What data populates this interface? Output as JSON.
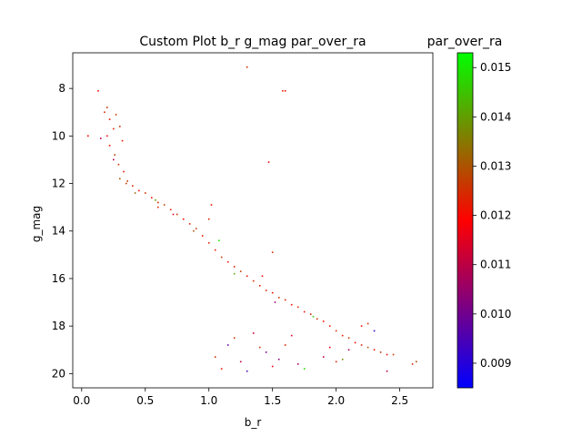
{
  "chart_data": {
    "type": "scatter",
    "title": "Custom Plot b_r g_mag par_over_ra",
    "xlabel": "b_r",
    "ylabel": "g_mag",
    "xlim": [
      -0.07,
      2.76
    ],
    "ylim": [
      20.6,
      6.5
    ],
    "y_inverted": true,
    "x_ticks": [
      "0.0",
      "0.5",
      "1.0",
      "1.5",
      "2.0",
      "2.5"
    ],
    "y_ticks": [
      "8",
      "10",
      "12",
      "14",
      "16",
      "18",
      "20"
    ],
    "grid": false,
    "legend": "none",
    "colorbar": {
      "label": "par_over_ra",
      "range": [
        0.0085,
        0.0153
      ],
      "ticks": [
        "0.009",
        "0.010",
        "0.011",
        "0.012",
        "0.013",
        "0.014",
        "0.015"
      ],
      "colors": [
        "#0000ff",
        "#ff0000",
        "#00ff00"
      ]
    },
    "series": [
      {
        "points": [
          [
            0.13,
            8.1,
            0.0121
          ],
          [
            0.05,
            10.0,
            0.0119
          ],
          [
            1.3,
            7.1,
            0.0124
          ],
          [
            1.58,
            8.1,
            0.0122
          ],
          [
            1.6,
            8.1,
            0.0121
          ],
          [
            1.47,
            11.1,
            0.0118
          ],
          [
            0.18,
            9.0,
            0.0125
          ],
          [
            0.2,
            8.8,
            0.0127
          ],
          [
            0.22,
            9.3,
            0.0122
          ],
          [
            0.25,
            9.7,
            0.0124
          ],
          [
            0.2,
            10.0,
            0.012
          ],
          [
            0.27,
            9.1,
            0.0126
          ],
          [
            0.3,
            9.6,
            0.0125
          ],
          [
            0.32,
            10.2,
            0.0123
          ],
          [
            0.22,
            10.4,
            0.0121
          ],
          [
            0.26,
            10.8,
            0.0128
          ],
          [
            0.29,
            11.2,
            0.0125
          ],
          [
            0.33,
            11.5,
            0.0122
          ],
          [
            0.36,
            11.9,
            0.0127
          ],
          [
            0.4,
            12.1,
            0.0124
          ],
          [
            0.25,
            11.0,
            0.0108
          ],
          [
            0.3,
            11.8,
            0.0131
          ],
          [
            0.45,
            12.3,
            0.0122
          ],
          [
            0.5,
            12.4,
            0.0126
          ],
          [
            0.55,
            12.6,
            0.0121
          ],
          [
            0.6,
            12.8,
            0.0124
          ],
          [
            0.65,
            12.9,
            0.0128
          ],
          [
            0.7,
            13.1,
            0.0122
          ],
          [
            0.75,
            13.3,
            0.0125
          ],
          [
            0.8,
            13.5,
            0.012
          ],
          [
            0.85,
            13.7,
            0.0123
          ],
          [
            0.9,
            13.9,
            0.0127
          ],
          [
            0.95,
            14.2,
            0.0121
          ],
          [
            1.0,
            14.5,
            0.0124
          ],
          [
            1.05,
            14.8,
            0.0122
          ],
          [
            1.1,
            15.1,
            0.0126
          ],
          [
            1.15,
            15.3,
            0.012
          ],
          [
            1.2,
            15.5,
            0.0123
          ],
          [
            1.25,
            15.7,
            0.0127
          ],
          [
            1.3,
            15.9,
            0.0121
          ],
          [
            1.35,
            16.1,
            0.0125
          ],
          [
            1.4,
            16.3,
            0.0122
          ],
          [
            1.45,
            16.5,
            0.0124
          ],
          [
            1.5,
            16.6,
            0.012
          ],
          [
            1.55,
            16.8,
            0.0126
          ],
          [
            1.6,
            16.9,
            0.0123
          ],
          [
            1.65,
            17.1,
            0.0121
          ],
          [
            1.7,
            17.2,
            0.0125
          ],
          [
            1.75,
            17.4,
            0.0122
          ],
          [
            1.8,
            17.5,
            0.0124
          ],
          [
            1.85,
            17.7,
            0.0126
          ],
          [
            1.9,
            17.8,
            0.0121
          ],
          [
            1.95,
            18.0,
            0.0123
          ],
          [
            2.0,
            18.2,
            0.0125
          ],
          [
            2.05,
            18.4,
            0.0122
          ],
          [
            2.1,
            18.5,
            0.0127
          ],
          [
            2.15,
            18.7,
            0.012
          ],
          [
            2.2,
            18.8,
            0.0124
          ],
          [
            2.25,
            18.9,
            0.0131
          ],
          [
            2.3,
            19.0,
            0.0122
          ],
          [
            2.35,
            19.1,
            0.0126
          ],
          [
            2.4,
            19.2,
            0.0121
          ],
          [
            2.45,
            19.2,
            0.0125
          ],
          [
            2.6,
            19.6,
            0.0123
          ],
          [
            2.63,
            19.5,
            0.0128
          ],
          [
            1.08,
            14.4,
            0.015
          ],
          [
            0.58,
            12.7,
            0.014
          ],
          [
            1.82,
            17.6,
            0.0146
          ],
          [
            1.9,
            19.3,
            0.0112
          ],
          [
            1.7,
            19.6,
            0.0105
          ],
          [
            1.5,
            19.7,
            0.0118
          ],
          [
            1.3,
            19.9,
            0.0095
          ],
          [
            1.1,
            19.8,
            0.0122
          ],
          [
            1.25,
            19.5,
            0.011
          ],
          [
            1.4,
            18.9,
            0.0126
          ],
          [
            1.55,
            19.4,
            0.0102
          ],
          [
            1.6,
            18.8,
            0.0123
          ],
          [
            1.35,
            18.3,
            0.0113
          ],
          [
            1.15,
            18.8,
            0.0098
          ],
          [
            1.05,
            19.3,
            0.0125
          ],
          [
            1.75,
            19.8,
            0.0148
          ],
          [
            2.0,
            19.5,
            0.0124
          ],
          [
            2.1,
            19.0,
            0.0107
          ],
          [
            2.2,
            18.0,
            0.0121
          ],
          [
            2.3,
            18.2,
            0.0092
          ],
          [
            2.4,
            19.9,
            0.011
          ],
          [
            2.25,
            17.9,
            0.0124
          ],
          [
            1.95,
            18.9,
            0.0118
          ],
          [
            2.05,
            19.4,
            0.0138
          ],
          [
            1.45,
            19.1,
            0.0101
          ],
          [
            1.2,
            18.5,
            0.0126
          ],
          [
            1.65,
            18.4,
            0.0116
          ],
          [
            1.52,
            17.0,
            0.0104
          ],
          [
            1.0,
            13.5,
            0.0123
          ],
          [
            0.72,
            13.3,
            0.0115
          ],
          [
            1.5,
            14.9,
            0.0125
          ],
          [
            0.88,
            14.0,
            0.013
          ],
          [
            1.02,
            12.9,
            0.0121
          ],
          [
            1.2,
            15.8,
            0.0142
          ],
          [
            1.42,
            15.9,
            0.0118
          ],
          [
            0.42,
            12.4,
            0.0133
          ],
          [
            0.35,
            12.0,
            0.0128
          ],
          [
            0.15,
            10.1,
            0.0108
          ],
          [
            0.6,
            13.0,
            0.0124
          ]
        ]
      }
    ]
  }
}
